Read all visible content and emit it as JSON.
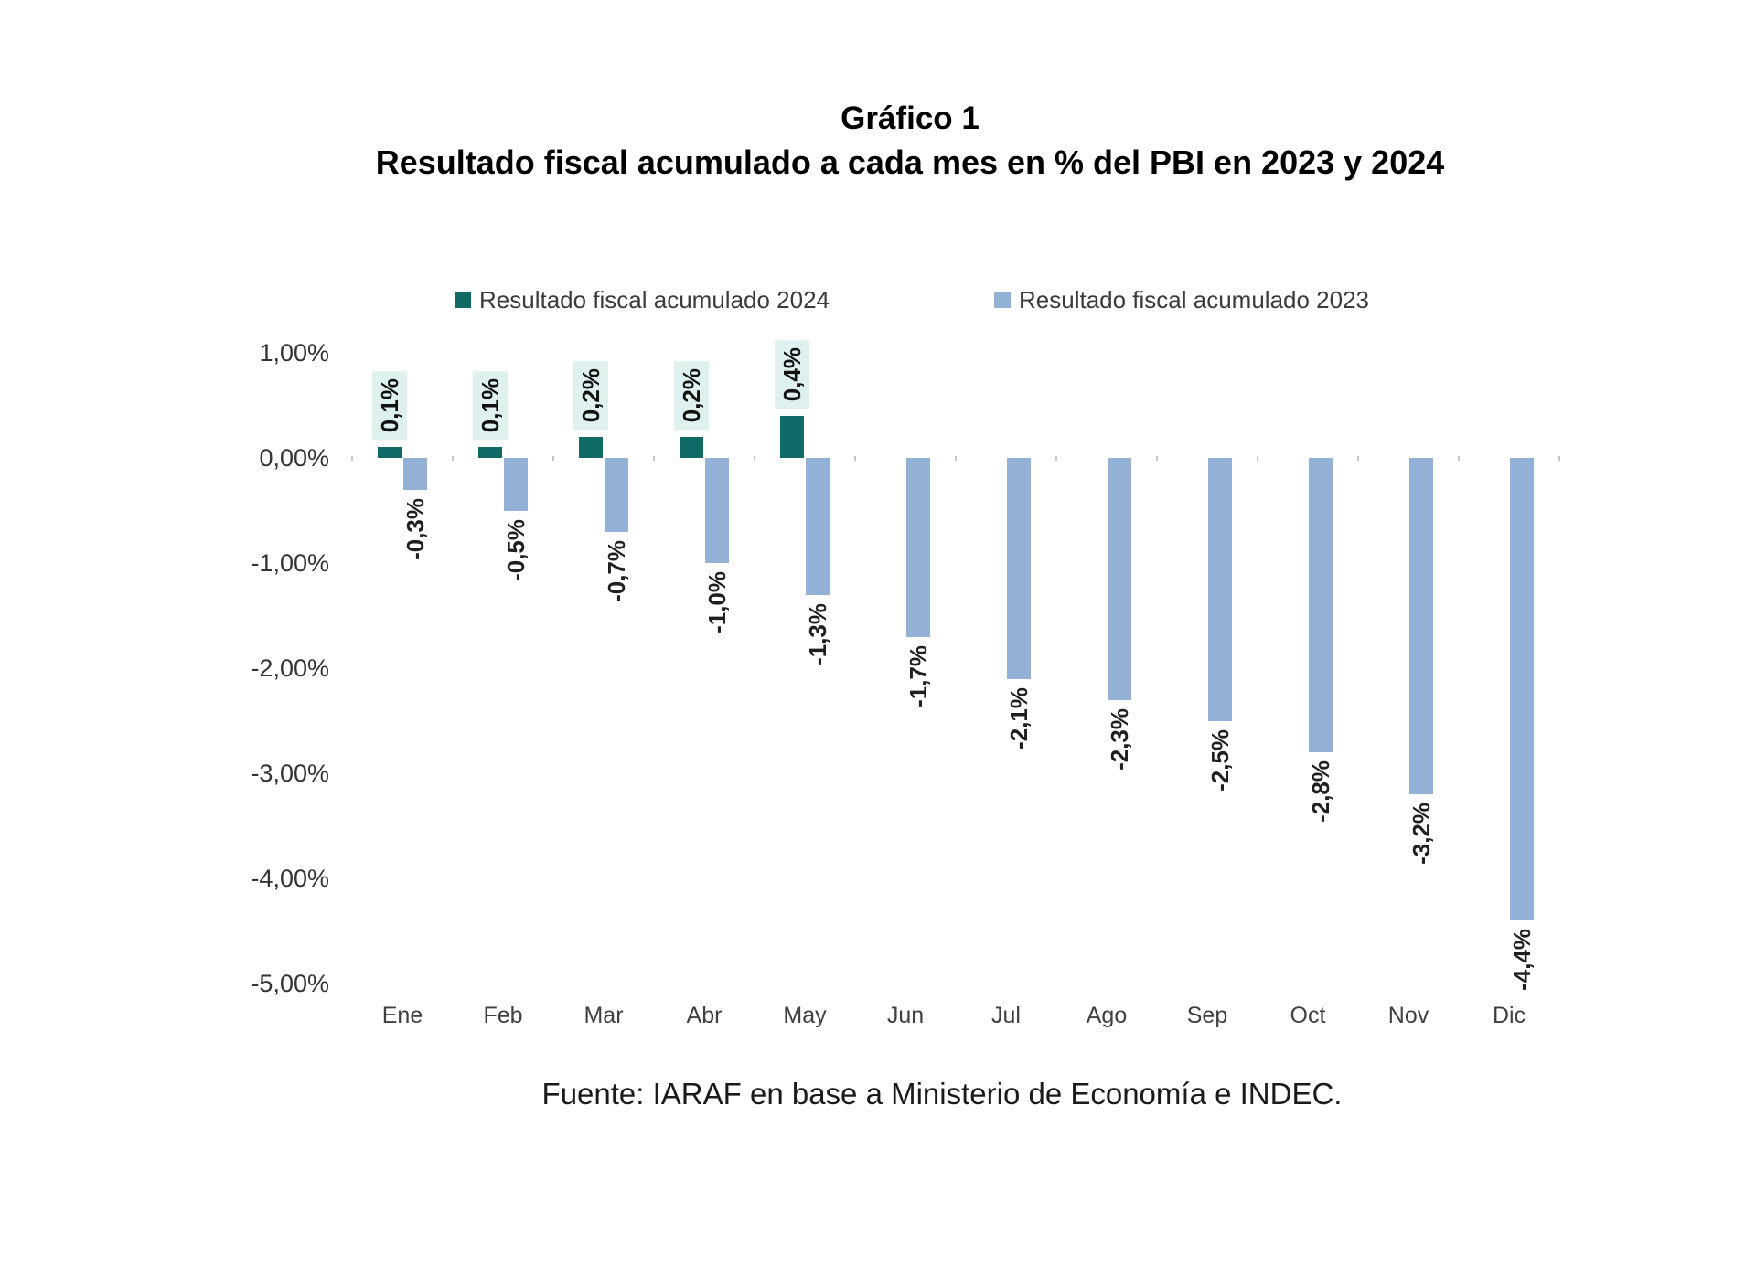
{
  "header": {
    "title": "Gráfico 1",
    "subtitle": "Resultado fiscal acumulado a cada mes en % del PBI en 2023 y 2024"
  },
  "legend": {
    "items": [
      {
        "label": "Resultado fiscal acumulado 2024",
        "color": "#106B66"
      },
      {
        "label": "Resultado fiscal acumulado 2023",
        "color": "#93B1D7"
      }
    ]
  },
  "source": "Fuente: IARAF en base a Ministerio de Economía e INDEC.",
  "chart_data": {
    "type": "bar",
    "title": "Resultado fiscal acumulado a cada mes en % del PBI en 2023 y 2024",
    "categories": [
      "Ene",
      "Feb",
      "Mar",
      "Abr",
      "May",
      "Jun",
      "Jul",
      "Ago",
      "Sep",
      "Oct",
      "Nov",
      "Dic"
    ],
    "series": [
      {
        "name": "Resultado fiscal acumulado 2024",
        "color": "#106B66",
        "label_background": "#DEF1EF",
        "values": [
          0.1,
          0.1,
          0.2,
          0.2,
          0.4,
          null,
          null,
          null,
          null,
          null,
          null,
          null
        ],
        "labels": [
          "0,1%",
          "0,1%",
          "0,2%",
          "0,2%",
          "0,4%",
          null,
          null,
          null,
          null,
          null,
          null,
          null
        ]
      },
      {
        "name": "Resultado fiscal acumulado 2023",
        "color": "#93B1D7",
        "values": [
          -0.3,
          -0.5,
          -0.7,
          -1.0,
          -1.3,
          -1.7,
          -2.1,
          -2.3,
          -2.5,
          -2.8,
          -3.2,
          -4.4
        ],
        "labels": [
          "-0,3%",
          "-0,5%",
          "-0,7%",
          "-1,0%",
          "-1,3%",
          "-1,7%",
          "-2,1%",
          "-2,3%",
          "-2,5%",
          "-2,8%",
          "-3,2%",
          "-4,4%"
        ]
      }
    ],
    "yticks": {
      "values": [
        1,
        0,
        -1,
        -2,
        -3,
        -4,
        -5
      ],
      "labels": [
        "1,00%",
        "0,00%",
        "-1,00%",
        "-2,00%",
        "-3,00%",
        "-4,00%",
        "-5,00%"
      ]
    },
    "ylim": [
      -5,
      1
    ],
    "xlabel": "",
    "ylabel": "",
    "grid": false,
    "legend_position": "top"
  }
}
